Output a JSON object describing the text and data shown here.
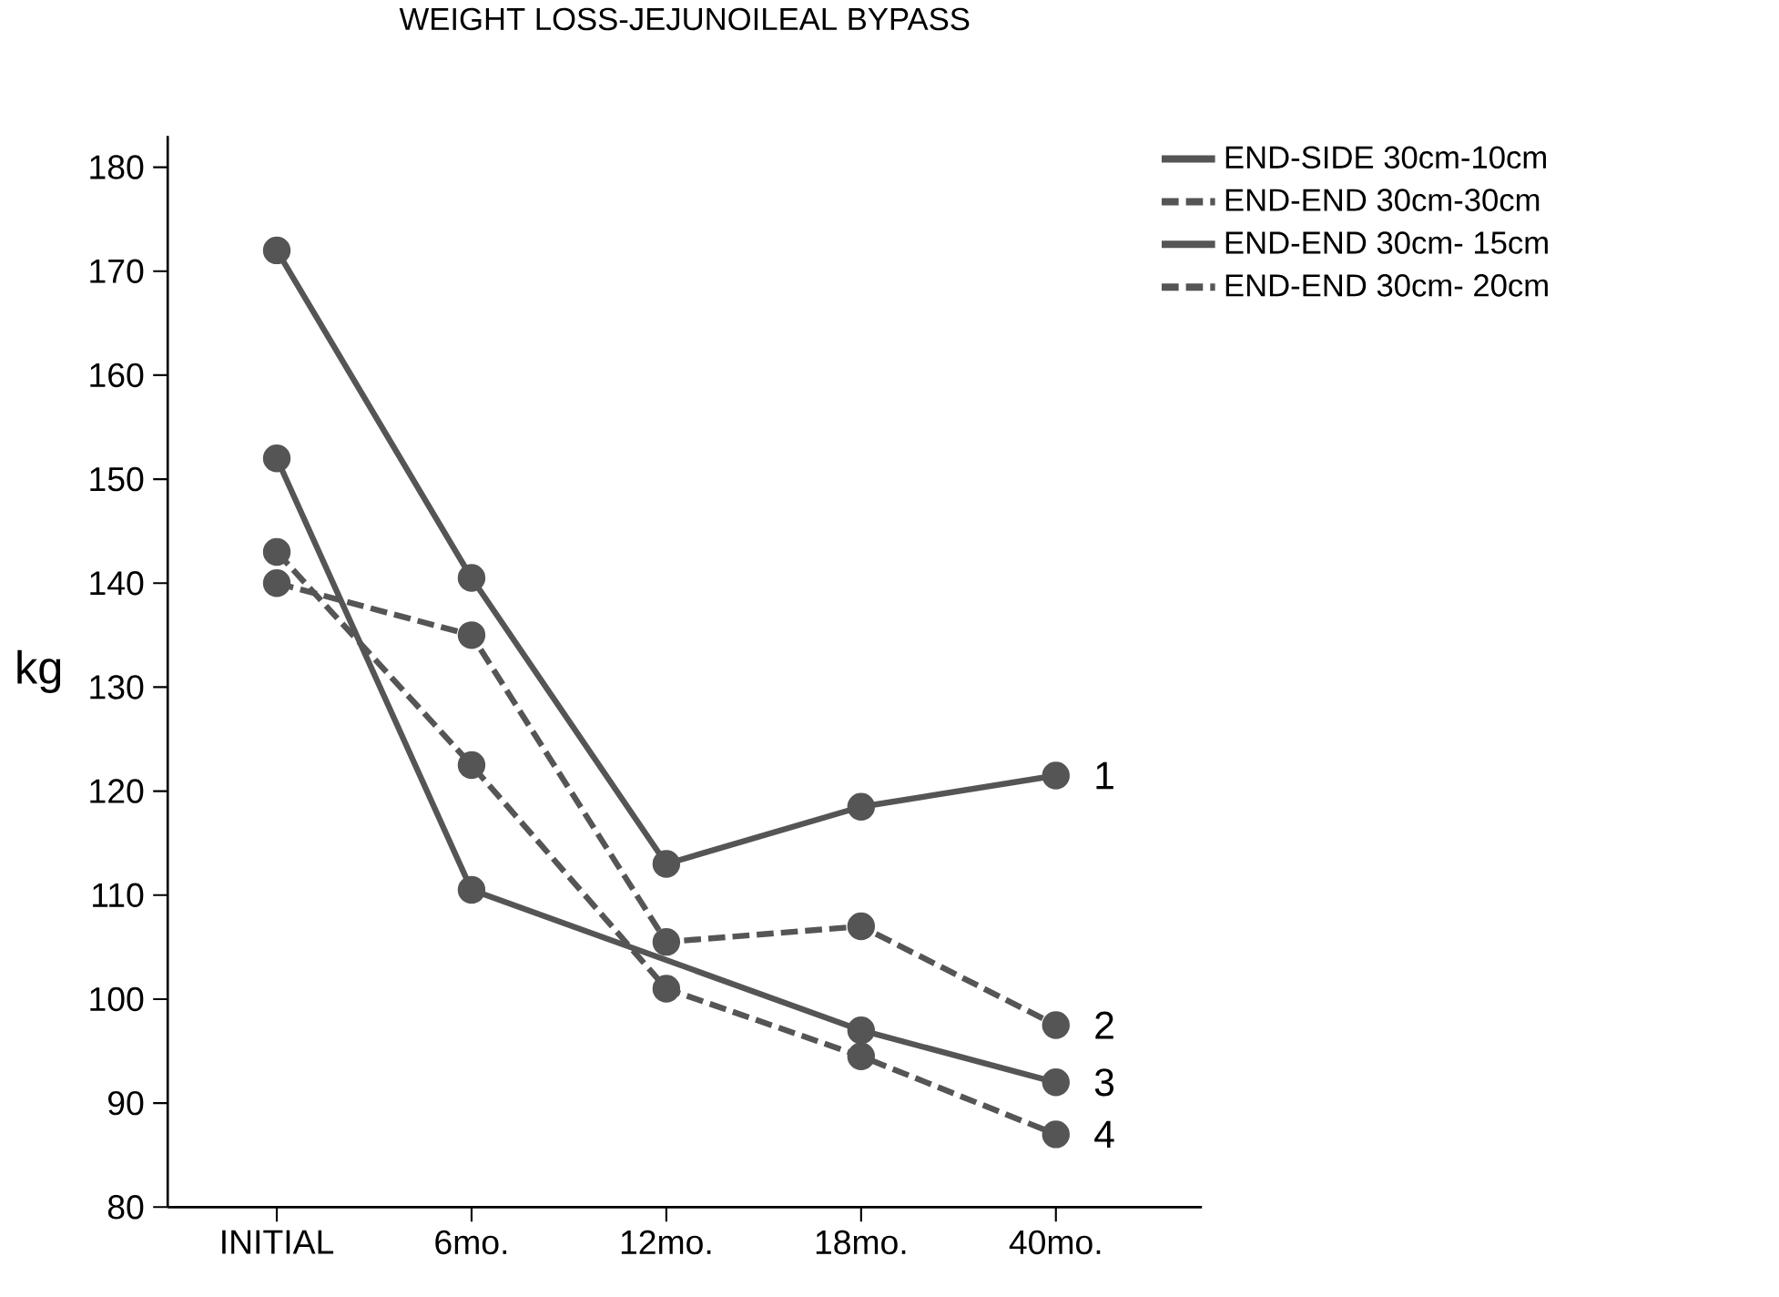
{
  "chart_data": {
    "type": "line",
    "title": "WEIGHT LOSS-JEJUNOILEAL BYPASS",
    "ylabel": "kg",
    "categories": [
      "INITIAL",
      "6mo.",
      "12mo.",
      "18mo.",
      "40mo."
    ],
    "series": [
      {
        "name": "END-SIDE 30cm-10cm",
        "color": "#555555",
        "line_style": "solid",
        "values": [
          172,
          140.5,
          113,
          118.5,
          121.5
        ]
      },
      {
        "name": "END-END 30cm-30cm",
        "color": "#555555",
        "line_style": "dashed",
        "values": [
          140,
          135,
          105.5,
          107,
          97.5
        ]
      },
      {
        "name": "END-END 30cm- 15cm",
        "color": "#555555",
        "line_style": "solid",
        "values": [
          152,
          110.5,
          null,
          97,
          92
        ]
      },
      {
        "name": "END-END 30cm- 20cm",
        "color": "#555555",
        "line_style": "dashed",
        "values": [
          143,
          122.5,
          101,
          94.5,
          87
        ]
      }
    ],
    "annotations": [
      {
        "text": "1",
        "x": "40mo.",
        "y": 121.5
      },
      {
        "text": "2",
        "x": "40mo.",
        "y": 97.5
      },
      {
        "text": "3",
        "x": "40mo.",
        "y": 92
      },
      {
        "text": "4",
        "x": "40mo.",
        "y": 87
      }
    ],
    "ylim": [
      80,
      183
    ],
    "yticks": [
      80,
      90,
      100,
      110,
      120,
      130,
      140,
      150,
      160,
      170,
      180
    ],
    "marker": "circle",
    "legend": "top right",
    "grid": false
  }
}
